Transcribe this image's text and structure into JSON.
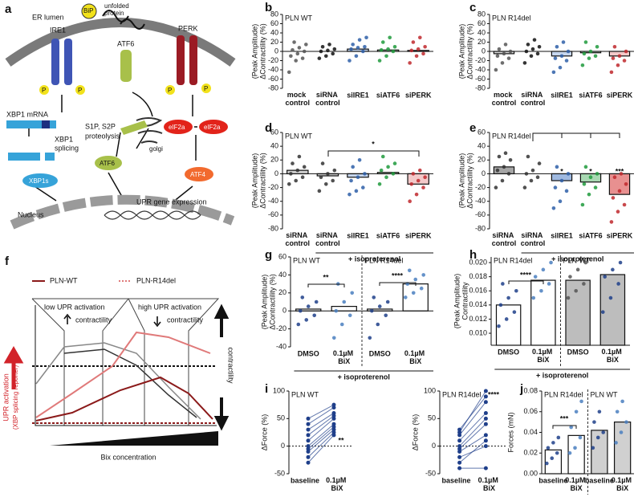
{
  "diagram_a": {
    "letter": "a",
    "labels": [
      "ER lumen",
      "IRE1",
      "BiP",
      "unfolded",
      "protein",
      "ATF6",
      "PERK",
      "P",
      "P",
      "P",
      "P",
      "XBP1 mRNA",
      "XBP1",
      "splicing",
      "XBP1s",
      "S1P, S2P",
      "proteolysis",
      "golgi",
      "eIF2a",
      "eIF2a",
      "ATF6",
      "ATF4",
      "Nucleus",
      "UPR gene expression"
    ]
  },
  "diagram_f": {
    "letter": "f",
    "legend": [
      "PLN-WT",
      "PLN-R14del"
    ],
    "labels": [
      "low UPR activation",
      "contractility",
      "high UPR activation",
      "contractility",
      "contractility",
      "Bix concentration"
    ],
    "y_label": [
      "UPR activation",
      "(XBP splicing reporter)"
    ]
  },
  "chart_data": [
    {
      "type": "bar",
      "letter": "b",
      "titles": [
        "PLN WT"
      ],
      "ylabel": [
        "ΔContractility (%)",
        "(Peak Amplitude)"
      ],
      "categories": [
        "mock control",
        "siRNA control",
        "siIRE1",
        "siATF6",
        "siPERK"
      ],
      "values": [
        0,
        0,
        5,
        3,
        2
      ],
      "points": [
        [
          -45,
          -20,
          -15,
          -10,
          -5,
          0,
          3,
          8,
          15,
          20
        ],
        [
          -15,
          -10,
          -5,
          0,
          2,
          5,
          10,
          15
        ],
        [
          -20,
          -10,
          0,
          5,
          8,
          10,
          15,
          25,
          30
        ],
        [
          -20,
          -10,
          0,
          3,
          5,
          10,
          20,
          30
        ],
        [
          -25,
          -10,
          -5,
          2,
          5,
          10,
          20,
          30
        ]
      ],
      "colors": [
        "#555555",
        "#111111",
        "#2e5fa8",
        "#1f9a3c",
        "#c0282d"
      ],
      "bar_colors": [
        "#d9d9d9",
        "#e6e6e6",
        "#c6d6ee",
        "#c9e8cf",
        "#f3c9c9"
      ],
      "ylim": [
        -80,
        80
      ],
      "yticks": [
        -80,
        -60,
        -40,
        -20,
        0,
        20,
        40,
        60,
        80
      ]
    },
    {
      "type": "bar",
      "letter": "c",
      "titles": [
        "PLN R14del"
      ],
      "ylabel": [
        "ΔContractility (%)",
        "(Peak Amplitude)"
      ],
      "categories": [
        "mock control",
        "siRNA control",
        "siIRE1",
        "siATF6",
        "siPERK"
      ],
      "values": [
        -5,
        0,
        -10,
        -3,
        -10
      ],
      "points": [
        [
          -40,
          -25,
          -15,
          -10,
          -5,
          0,
          5,
          15
        ],
        [
          -25,
          -10,
          -5,
          0,
          5,
          10,
          15,
          25
        ],
        [
          -45,
          -35,
          -20,
          -15,
          -10,
          0,
          10,
          20
        ],
        [
          -30,
          -15,
          -10,
          -5,
          0,
          10,
          20
        ],
        [
          -45,
          -30,
          -20,
          -15,
          -10,
          0,
          10
        ]
      ],
      "colors": [
        "#555555",
        "#111111",
        "#2e5fa8",
        "#1f9a3c",
        "#c0282d"
      ],
      "bar_colors": [
        "#d9d9d9",
        "#e6e6e6",
        "#c6d6ee",
        "#c9e8cf",
        "#f3c9c9"
      ],
      "ylim": [
        -80,
        80
      ],
      "yticks": [
        -80,
        -60,
        -40,
        -20,
        0,
        20,
        40,
        60,
        80
      ]
    },
    {
      "type": "bar",
      "letter": "d",
      "titles": [
        "PLN WT"
      ],
      "ylabel": [
        "ΔContractility (%)",
        "(Peak Amplitude)"
      ],
      "categories": [
        "siRNA control",
        "siRNA control",
        "siIRE1",
        "siATF6",
        "siPERK"
      ],
      "values": [
        5,
        -3,
        -5,
        2,
        -15
      ],
      "points": [
        [
          -15,
          -10,
          -5,
          0,
          5,
          10,
          15,
          25
        ],
        [
          -25,
          -15,
          -10,
          -5,
          0,
          5,
          15
        ],
        [
          -30,
          -25,
          -20,
          -10,
          -5,
          0,
          10,
          20
        ],
        [
          -15,
          -5,
          0,
          5,
          10,
          15,
          25
        ],
        [
          -40,
          -30,
          -20,
          -15,
          -10,
          -5,
          0,
          5
        ]
      ],
      "colors": [
        "#333333",
        "#333333",
        "#2e5fa8",
        "#1f9a3c",
        "#c0282d"
      ],
      "bar_colors": [
        "#d0d0d0",
        "#d0d0d0",
        "#c6d6ee",
        "#c9e8cf",
        "#f3c9c9"
      ],
      "ylim": [
        -80,
        60
      ],
      "yticks": [
        -80,
        -60,
        -40,
        -20,
        0,
        20,
        40,
        60
      ],
      "annotations": [
        "*"
      ],
      "footer": "+ isoproterenol"
    },
    {
      "type": "bar",
      "letter": "e",
      "titles": [
        "PLN R14del"
      ],
      "ylabel": [
        "ΔContractility (%)",
        "(Peak Amplitude)"
      ],
      "categories": [
        "siRNA control",
        "siRNA control",
        "siIRE1",
        "siATF6",
        "siPERK"
      ],
      "values": [
        10,
        0,
        -10,
        -12,
        -30
      ],
      "points": [
        [
          -20,
          -10,
          0,
          5,
          10,
          20,
          25,
          30
        ],
        [
          -20,
          -10,
          -5,
          0,
          5,
          15,
          25
        ],
        [
          -50,
          -40,
          -25,
          -20,
          -10,
          0,
          10
        ],
        [
          -45,
          -30,
          -20,
          -15,
          -5,
          0,
          10
        ],
        [
          -70,
          -55,
          -45,
          -35,
          -25,
          -15,
          -5,
          0
        ]
      ],
      "colors": [
        "#333333",
        "#333333",
        "#2e5fa8",
        "#1f9a3c",
        "#c0282d"
      ],
      "bar_colors": [
        "#a6a6a6",
        "#d0d0d0",
        "#9fb9e0",
        "#a8d8b2",
        "#e89090"
      ],
      "ylim": [
        -80,
        60
      ],
      "yticks": [
        -80,
        -60,
        -40,
        -20,
        0,
        20,
        40,
        60
      ],
      "annotations": [
        "*",
        "*",
        "***"
      ],
      "footer": "+ isoproterenol"
    },
    {
      "type": "bar",
      "letter": "g",
      "titles": [
        "PLN WT",
        "PLN R14del"
      ],
      "ylabel": [
        "ΔContractility (%)",
        "(Peak Amplitude)"
      ],
      "categories": [
        "DMSO",
        "0.1µM BiX",
        "DMSO",
        "0.1µM BiX"
      ],
      "values": [
        2,
        5,
        2,
        30
      ],
      "points": [
        [
          -15,
          -10,
          -5,
          0,
          5,
          10,
          15
        ],
        [
          -30,
          -15,
          -5,
          0,
          10,
          20,
          30
        ],
        [
          -30,
          -15,
          -5,
          0,
          5,
          10,
          15
        ],
        [
          15,
          20,
          25,
          30,
          35,
          40,
          45
        ]
      ],
      "colors": [
        "#1f3f8a",
        "#4a7fc0",
        "#1f3f8a",
        "#4a7fc0"
      ],
      "bar_colors": [
        "#ffffff",
        "#ffffff",
        "#ffffff",
        "#ffffff"
      ],
      "ylim": [
        -40,
        60
      ],
      "yticks": [
        -40,
        -20,
        0,
        20,
        40,
        60
      ],
      "annotations": [
        "**",
        "****"
      ],
      "footer": "+ isoproterenol"
    },
    {
      "type": "bar",
      "letter": "h",
      "titles": [
        "PLN R14del",
        "PLN WT"
      ],
      "ylabel": [
        "Contractility",
        "(Peak Amplitude)"
      ],
      "categories": [
        "DMSO",
        "0.1µM BiX",
        "DMSO",
        "0.1µM BiX"
      ],
      "values": [
        0.014,
        0.0175,
        0.0175,
        0.0183
      ],
      "points": [
        [
          0.011,
          0.012,
          0.013,
          0.014,
          0.015,
          0.016,
          0.017
        ],
        [
          0.015,
          0.016,
          0.017,
          0.018,
          0.019,
          0.02
        ],
        [
          0.015,
          0.016,
          0.017,
          0.018,
          0.019,
          0.02
        ],
        [
          0.013,
          0.015,
          0.017,
          0.018,
          0.019,
          0.02
        ]
      ],
      "colors": [
        "#1f3f8a",
        "#4a7fc0",
        "#555555",
        "#1f3f8a"
      ],
      "bar_colors": [
        "#ffffff",
        "#ffffff",
        "#bdbdbd",
        "#bdbdbd"
      ],
      "ylim": [
        0.0083,
        0.0208
      ],
      "yticks": [
        {
          "value": 0.01,
          "label": "0.010"
        },
        0.012,
        0.014,
        0.016,
        0.018,
        {
          "value": 0.02,
          "label": "0.020"
        }
      ],
      "annotations": [
        "****"
      ],
      "footer": "+ isoproterenol"
    },
    {
      "type": "paired",
      "letter": "i",
      "titles": [
        "PLN WT"
      ],
      "ylabel": [
        "ΔForce (%)"
      ],
      "categories": [
        "baseline",
        "0.1µM BiX"
      ],
      "points": [
        [
          -30,
          -20,
          -10,
          -5,
          0,
          10,
          20,
          30,
          40,
          50
        ],
        [
          20,
          25,
          30,
          35,
          40,
          50,
          55,
          60,
          70,
          75
        ]
      ],
      "colors": [
        "#1f3f8a",
        "#1f3f8a"
      ],
      "ylim": [
        -50,
        100
      ],
      "yticks": [
        -50,
        0,
        50,
        100
      ],
      "annotations": [
        "**"
      ]
    },
    {
      "type": "paired",
      "titles": [
        "PLN R14del"
      ],
      "ylabel": [
        "ΔForce (%)"
      ],
      "categories": [
        "baseline",
        "0.1µM BiX"
      ],
      "points": [
        [
          -40,
          -30,
          -20,
          -10,
          -5,
          0,
          10,
          20,
          25,
          30
        ],
        [
          -40,
          10,
          0,
          20,
          40,
          50,
          60,
          80,
          100,
          90
        ]
      ],
      "colors": [
        "#1f3f8a",
        "#1f3f8a"
      ],
      "ylim": [
        -50,
        100
      ],
      "yticks": [
        -50,
        0,
        50,
        100
      ],
      "annotations": [
        "****"
      ]
    },
    {
      "type": "bar",
      "letter": "j",
      "titles": [
        "PLN R14del",
        "PLN WT"
      ],
      "ylabel": [
        "Forces (mN)"
      ],
      "categories": [
        "baseline",
        "0.1µM BiX",
        "baseline",
        "0.1µM BiX"
      ],
      "values": [
        0.023,
        0.037,
        0.042,
        0.05
      ],
      "points": [
        [
          0.01,
          0.015,
          0.02,
          0.025,
          0.03,
          0.035
        ],
        [
          0.02,
          0.025,
          0.035,
          0.045,
          0.06,
          0.07
        ],
        [
          0.025,
          0.035,
          0.04,
          0.05,
          0.06
        ],
        [
          0.03,
          0.04,
          0.05,
          0.06,
          0.07
        ]
      ],
      "colors": [
        "#1f3f8a",
        "#4a7fc0",
        "#1f3f8a",
        "#4a7fc0"
      ],
      "bar_colors": [
        "#ffffff",
        "#ffffff",
        "#d0d0d0",
        "#d0d0d0"
      ],
      "ylim": [
        0,
        0.08
      ],
      "yticks": [
        {
          "value": 0,
          "label": "0.00"
        },
        0.02,
        0.04,
        0.06,
        0.08
      ],
      "annotations": [
        "***"
      ]
    }
  ]
}
